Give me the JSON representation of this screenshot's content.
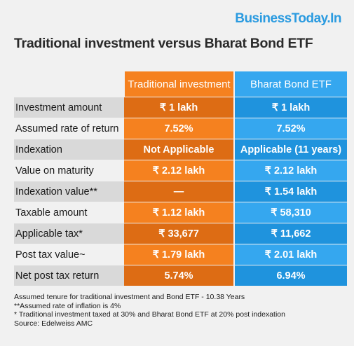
{
  "brand": "BusinessToday.In",
  "title": "Traditional investment versus Bharat Bond ETF",
  "columns": {
    "traditional": "Traditional investment",
    "bond": "Bharat Bond ETF"
  },
  "rows": [
    {
      "label": "Investment amount",
      "traditional": "₹ 1 lakh",
      "bond": "₹ 1 lakh"
    },
    {
      "label": "Assumed rate of return",
      "traditional": "7.52%",
      "bond": "7.52%"
    },
    {
      "label": "Indexation",
      "traditional": "Not Applicable",
      "bond": "Applicable (11 years)"
    },
    {
      "label": "Value on maturity",
      "traditional": "₹ 2.12 lakh",
      "bond": "₹ 2.12 lakh"
    },
    {
      "label": "Indexation value**",
      "traditional": "—",
      "bond": "₹ 1.54 lakh"
    },
    {
      "label": "Taxable amount",
      "traditional": "₹ 1.12 lakh",
      "bond": "₹ 58,310"
    },
    {
      "label": "Applicable tax*",
      "traditional": "₹ 33,677",
      "bond": "₹ 11,662"
    },
    {
      "label": "Post tax value~",
      "traditional": "₹ 1.79 lakh",
      "bond": "₹ 2.01 lakh"
    },
    {
      "label": "Net post tax return",
      "traditional": "5.74%",
      "bond": "6.94%"
    }
  ],
  "notes": [
    "Assumed tenure for traditional investment and Bond ETF - 10.38 Years",
    "**Assumed rate of inflation is 4%",
    "* Traditional investment taxed at 30% and Bharat Bond ETF at 20% post indexation",
    "Source: Edelweiss AMC"
  ],
  "colors": {
    "traditional": "#f5811f",
    "traditional_dark": "#dd6c14",
    "bond": "#35a7ef",
    "bond_dark": "#1f93dd",
    "brand": "#2b9be0"
  }
}
